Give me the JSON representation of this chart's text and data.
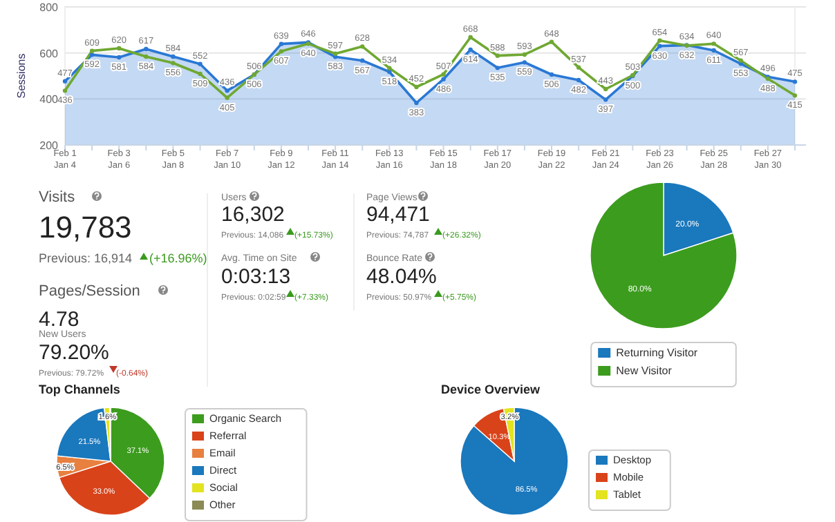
{
  "chart_data": [
    {
      "type": "area",
      "ylabel": "Sessions",
      "ylim": [
        200,
        800
      ],
      "yticks": [
        200,
        400,
        600,
        800
      ],
      "grid": "y",
      "marker": "circle",
      "data_labels": true,
      "categories": [
        "Feb 1\nJan 4",
        null,
        "Feb 3\nJan 6",
        null,
        "Feb 5\nJan 8",
        null,
        "Feb 7\nJan 10",
        null,
        "Feb 9\nJan 12",
        null,
        "Feb 11\nJan 14",
        null,
        "Feb 13\nJan 16",
        null,
        "Feb 15\nJan 18",
        null,
        "Feb 17\nJan 20",
        null,
        "Feb 19\nJan 22",
        null,
        "Feb 21\nJan 24",
        null,
        "Feb 23\nJan 26",
        null,
        "Feb 25\nJan 28",
        null,
        "Feb 27\nJan 30",
        null
      ],
      "series": [
        {
          "type": "area",
          "color": "#2a78d4",
          "values": [
            477,
            592,
            581,
            617,
            584,
            552,
            436,
            506,
            639,
            646,
            583,
            567,
            518,
            383,
            486,
            614,
            535,
            559,
            506,
            482,
            397,
            500,
            630,
            634,
            611,
            553,
            496,
            475
          ]
        },
        {
          "type": "line",
          "color": "#6fa832",
          "values": [
            436,
            609,
            620,
            584,
            556,
            509,
            405,
            506,
            607,
            640,
            597,
            628,
            534,
            452,
            507,
            668,
            588,
            593,
            648,
            537,
            443,
            503,
            654,
            632,
            640,
            567,
            488,
            415
          ]
        }
      ]
    },
    {
      "type": "other",
      "annotations": [
        "Visits",
        "19,783",
        "Previous: 16,914",
        "(+16.96%)",
        "Users",
        "16,302",
        "Previous: 14,086",
        "(+15.73%)",
        "Page Views",
        "94,471",
        "Previous: 74,787",
        "(+26.32%)",
        "Avg. Time on Site",
        "0:03:13",
        "Previous: 0:02:59",
        "(+7.33%)",
        "Bounce Rate",
        "48.04%",
        "Previous: 50.97%",
        "(+5.75%)",
        "Pages/Session",
        "4.78",
        "New Users",
        "79.20%",
        "Previous: 79.72%",
        "(-0.64%)"
      ]
    },
    {
      "type": "pie",
      "categories": [
        "Returning Visitor",
        "New Visitor"
      ],
      "values": [
        20.0,
        80.0
      ],
      "colors": [
        "#1a78bd",
        "#3c9c1e"
      ],
      "value_labels": [
        "20.0%",
        "80.0%"
      ],
      "legend": "bottom"
    },
    {
      "type": "pie",
      "title": "Top Channels",
      "categories": [
        "Organic Search",
        "Referral",
        "Email",
        "Direct",
        "Social",
        "Other"
      ],
      "values": [
        37.1,
        33.0,
        6.5,
        21.5,
        1.6,
        0.3
      ],
      "colors": [
        "#3c9c1e",
        "#d9431a",
        "#e8803f",
        "#1a78bd",
        "#e3e320",
        "#8c8a55"
      ],
      "value_labels": [
        "37.1%",
        "33.0%",
        "6.5%",
        "21.5%",
        "1.6%",
        null
      ],
      "legend": "right"
    },
    {
      "type": "pie",
      "title": "Device Overview",
      "categories": [
        "Desktop",
        "Mobile",
        "Tablet"
      ],
      "values": [
        86.5,
        10.3,
        3.2
      ],
      "colors": [
        "#1a78bd",
        "#d9431a",
        "#e3e320"
      ],
      "value_labels": [
        "86.5%",
        "10.3%",
        "3.2%"
      ],
      "legend": "right"
    }
  ]
}
